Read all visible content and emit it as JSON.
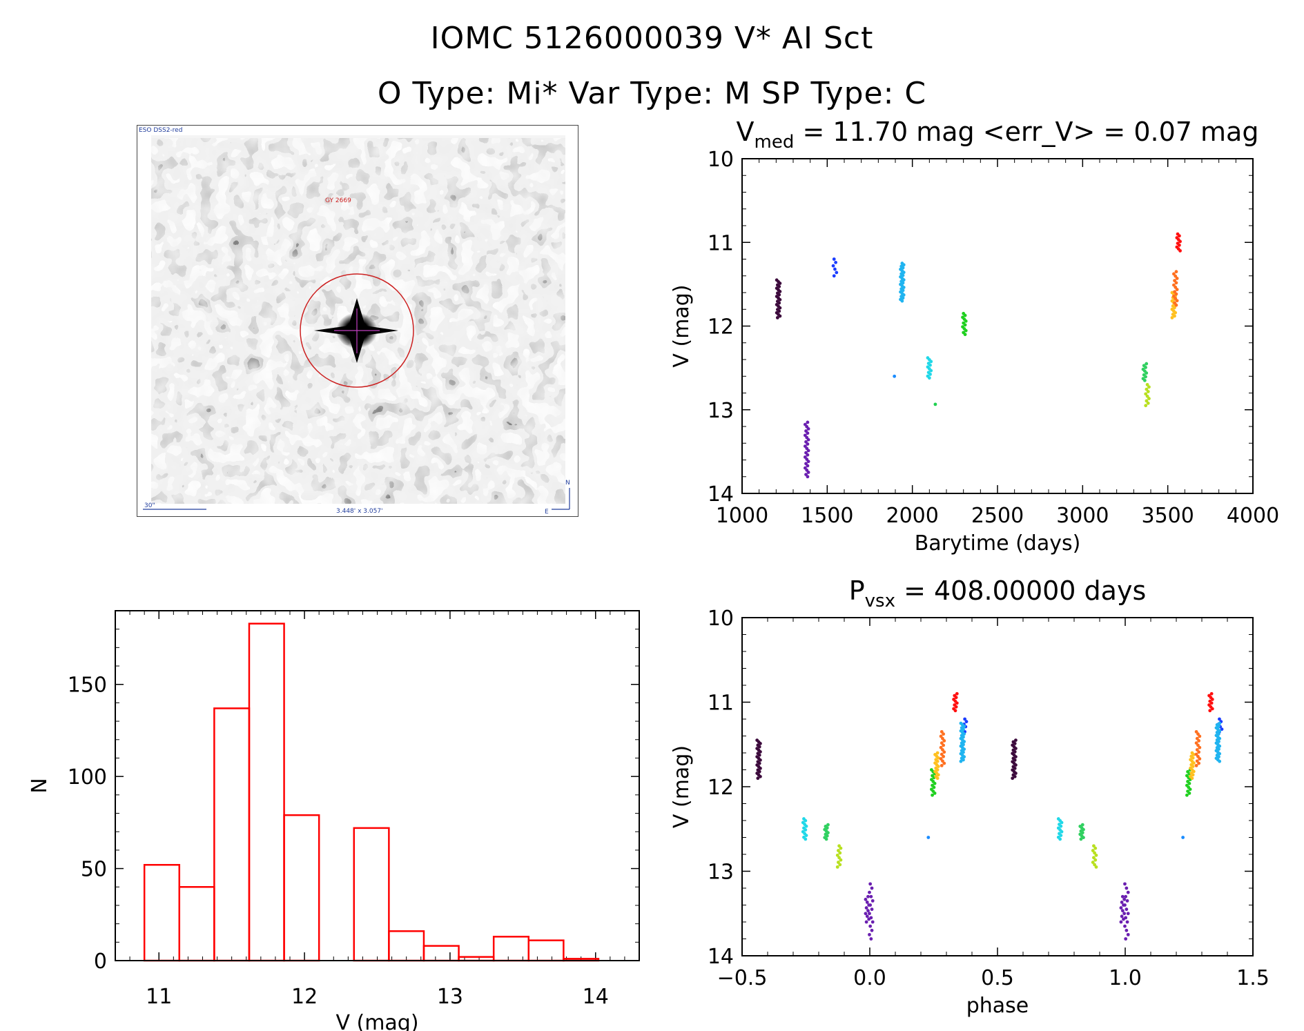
{
  "header": {
    "title_line1": "IOMC 5126000039   V* AI Sct",
    "title_line2": "O Type: Mi*  Var Type: M   SP Type: C"
  },
  "finder": {
    "survey_label": "ESO DSS2-red",
    "target_label": "GY 2669",
    "scale_label": "30\"",
    "fov_label": "3.448' x 3.057'",
    "compass_north": "N",
    "compass_east": "E"
  },
  "colors": {
    "histogram": "#ff0000",
    "circle": "#cc2020",
    "crosshair": "#c040c0",
    "finder_text": "#1f3c9c"
  },
  "chart_data": [
    {
      "id": "lightcurve",
      "type": "scatter",
      "title_main": "V",
      "title_sub": "med",
      "title_rest": " = 11.70 mag <err_V> = 0.07 mag",
      "xlabel": "Barytime (days)",
      "ylabel": "V (mag)",
      "xlim": [
        1000,
        4000
      ],
      "ylim": [
        14,
        10
      ],
      "x_ticks": [
        "1000",
        "1500",
        "2000",
        "2500",
        "3000",
        "3500",
        "4000"
      ],
      "y_ticks": [
        "10",
        "11",
        "12",
        "13",
        "14"
      ],
      "groups": [
        {
          "x": 1213,
          "ymin": 11.45,
          "ymax": 11.9,
          "n": 24,
          "color": "#3c0a3c"
        },
        {
          "x": 1380,
          "ymin": 13.15,
          "ymax": 13.8,
          "n": 26,
          "color": "#6a1fb0"
        },
        {
          "x": 1545,
          "ymin": 11.2,
          "ymax": 11.4,
          "n": 6,
          "color": "#1a3cff"
        },
        {
          "x": 1885,
          "ymin": 12.58,
          "ymax": 12.62,
          "n": 1,
          "color": "#1a8cff"
        },
        {
          "x": 1940,
          "ymin": 11.25,
          "ymax": 11.7,
          "n": 26,
          "color": "#20b4f0"
        },
        {
          "x": 2100,
          "ymin": 12.38,
          "ymax": 12.62,
          "n": 12,
          "color": "#20d8e8"
        },
        {
          "x": 2130,
          "ymin": 12.92,
          "ymax": 12.95,
          "n": 1,
          "color": "#20d050"
        },
        {
          "x": 2305,
          "ymin": 11.85,
          "ymax": 12.1,
          "n": 12,
          "color": "#20d020"
        },
        {
          "x": 3365,
          "ymin": 12.45,
          "ymax": 12.65,
          "n": 10,
          "color": "#30d060"
        },
        {
          "x": 3380,
          "ymin": 12.7,
          "ymax": 12.95,
          "n": 10,
          "color": "#b8e020"
        },
        {
          "x": 3535,
          "ymin": 11.6,
          "ymax": 11.9,
          "n": 16,
          "color": "#ffc020"
        },
        {
          "x": 3545,
          "ymin": 11.35,
          "ymax": 11.75,
          "n": 16,
          "color": "#ff7020"
        },
        {
          "x": 3563,
          "ymin": 10.9,
          "ymax": 11.1,
          "n": 10,
          "color": "#ff1010"
        }
      ]
    },
    {
      "id": "histogram",
      "type": "bar",
      "xlabel": "V (mag)",
      "ylabel": "N",
      "xlim": [
        10.7,
        14.3
      ],
      "ylim": [
        0,
        190
      ],
      "x_ticks": [
        "11",
        "12",
        "13",
        "14"
      ],
      "y_ticks": [
        "0",
        "50",
        "100",
        "150"
      ],
      "bin_start": 10.9,
      "bin_width": 0.24,
      "values": [
        52,
        40,
        137,
        183,
        79,
        0,
        72,
        16,
        8,
        2,
        13,
        11,
        1
      ]
    },
    {
      "id": "phased",
      "type": "scatter",
      "title_main": "P",
      "title_sub": "vsx",
      "title_rest": " = 408.00000 days",
      "xlabel": "phase",
      "ylabel": "V (mag)",
      "xlim": [
        -0.5,
        1.5
      ],
      "ylim": [
        14,
        10
      ],
      "x_ticks": [
        "−0.5",
        "0.0",
        "0.5",
        "1.0",
        "1.5"
      ],
      "y_ticks": [
        "10",
        "11",
        "12",
        "13",
        "14"
      ],
      "groups": [
        {
          "x": -0.435,
          "ymin": 11.45,
          "ymax": 11.9,
          "n": 24,
          "color": "#3c0a3c"
        },
        {
          "x": -0.01,
          "ymin": 13.3,
          "ymax": 13.6,
          "n": 10,
          "color": "#6a1fb0"
        },
        {
          "x": 0.005,
          "ymin": 13.15,
          "ymax": 13.8,
          "n": 14,
          "color": "#6a1fb0"
        },
        {
          "x": 0.335,
          "ymin": 10.9,
          "ymax": 11.1,
          "n": 10,
          "color": "#ff1010"
        },
        {
          "x": 0.372,
          "ymin": 11.2,
          "ymax": 11.35,
          "n": 6,
          "color": "#1a3cff"
        },
        {
          "x": 0.363,
          "ymin": 11.25,
          "ymax": 11.7,
          "n": 26,
          "color": "#20b4f0"
        },
        {
          "x": 0.226,
          "ymin": 12.58,
          "ymax": 12.62,
          "n": 1,
          "color": "#1a8cff"
        },
        {
          "x": -0.255,
          "ymin": 12.38,
          "ymax": 12.62,
          "n": 12,
          "color": "#20d8e8"
        },
        {
          "x": -0.17,
          "ymin": 12.45,
          "ymax": 12.62,
          "n": 10,
          "color": "#30d060"
        },
        {
          "x": -0.12,
          "ymin": 12.7,
          "ymax": 12.95,
          "n": 10,
          "color": "#b8e020"
        },
        {
          "x": 0.248,
          "ymin": 11.8,
          "ymax": 12.1,
          "n": 14,
          "color": "#20d020"
        },
        {
          "x": 0.262,
          "ymin": 11.6,
          "ymax": 11.9,
          "n": 16,
          "color": "#ffc020"
        },
        {
          "x": 0.285,
          "ymin": 11.35,
          "ymax": 11.75,
          "n": 16,
          "color": "#ff7020"
        },
        {
          "x": 0.565,
          "ymin": 11.45,
          "ymax": 11.9,
          "n": 24,
          "color": "#3c0a3c"
        },
        {
          "x": 0.99,
          "ymin": 13.3,
          "ymax": 13.6,
          "n": 10,
          "color": "#6a1fb0"
        },
        {
          "x": 1.005,
          "ymin": 13.15,
          "ymax": 13.8,
          "n": 14,
          "color": "#6a1fb0"
        },
        {
          "x": 1.335,
          "ymin": 10.9,
          "ymax": 11.1,
          "n": 10,
          "color": "#ff1010"
        },
        {
          "x": 1.372,
          "ymin": 11.2,
          "ymax": 11.35,
          "n": 6,
          "color": "#1a3cff"
        },
        {
          "x": 1.363,
          "ymin": 11.25,
          "ymax": 11.7,
          "n": 26,
          "color": "#20b4f0"
        },
        {
          "x": 1.226,
          "ymin": 12.58,
          "ymax": 12.62,
          "n": 1,
          "color": "#1a8cff"
        },
        {
          "x": 0.745,
          "ymin": 12.38,
          "ymax": 12.62,
          "n": 12,
          "color": "#20d8e8"
        },
        {
          "x": 0.83,
          "ymin": 12.45,
          "ymax": 12.62,
          "n": 10,
          "color": "#30d060"
        },
        {
          "x": 0.88,
          "ymin": 12.7,
          "ymax": 12.95,
          "n": 10,
          "color": "#b8e020"
        },
        {
          "x": 1.248,
          "ymin": 11.8,
          "ymax": 12.1,
          "n": 14,
          "color": "#20d020"
        },
        {
          "x": 1.262,
          "ymin": 11.6,
          "ymax": 11.9,
          "n": 16,
          "color": "#ffc020"
        },
        {
          "x": 1.285,
          "ymin": 11.35,
          "ymax": 11.75,
          "n": 16,
          "color": "#ff7020"
        }
      ]
    }
  ]
}
